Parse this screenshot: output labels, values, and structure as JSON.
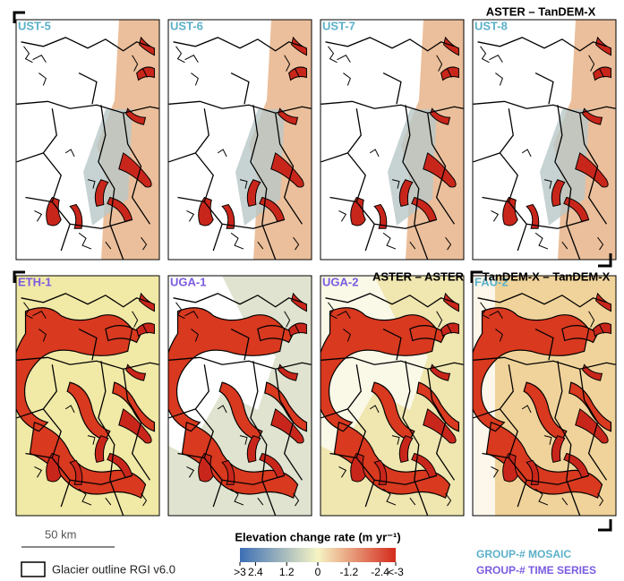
{
  "panels": [
    {
      "label": "UST-5",
      "color": "#5bb0c8"
    },
    {
      "label": "UST-6",
      "color": "#5bb0c8"
    },
    {
      "label": "UST-7",
      "color": "#5bb0c8"
    },
    {
      "label": "UST-8",
      "color": "#5bb0c8"
    },
    {
      "label": "ETH-1",
      "color": "#7a5be0"
    },
    {
      "label": "UGA-1",
      "color": "#7a5be0"
    },
    {
      "label": "UGA-2",
      "color": "#7a5be0"
    },
    {
      "label": "FAU-2",
      "color": "#5bb0c8"
    }
  ],
  "group_titles": [
    "ASTER – TanDEM-X",
    "ASTER – ASTER",
    "TanDEM-X – TanDEM-X"
  ],
  "colorbar": {
    "title": "Elevation change rate (m yr⁻¹)",
    "lim": [
      3,
      -3
    ],
    "colors": [
      "#3d6fb5",
      "#f6f4c4",
      "#d42a1c"
    ],
    "ticks": [
      {
        "value": 3,
        "label": ">3"
      },
      2.4,
      1.2,
      0,
      -1.2,
      -2.4,
      {
        "value": -3,
        "label": "<-3"
      }
    ]
  },
  "scale_bar": "50 km",
  "outline_legend": "Glacier outline RGI v6.0",
  "group_legend": [
    {
      "label": "GROUP-# MOSAIC",
      "color": "#5bb0c8"
    },
    {
      "label": "GROUP-# TIME SERIES",
      "color": "#7a5be0"
    }
  ]
}
